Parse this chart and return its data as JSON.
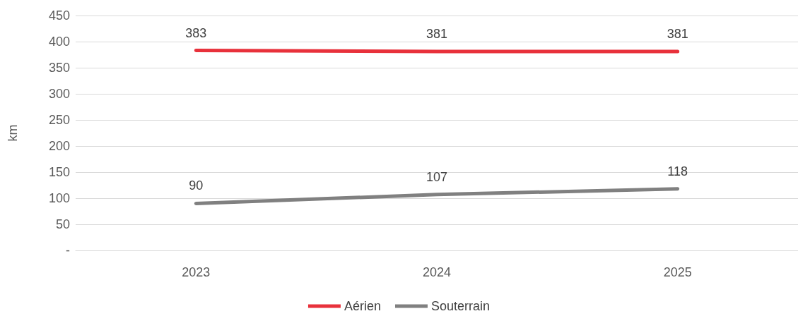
{
  "chart_data": {
    "type": "line",
    "ylabel": "km",
    "categories": [
      "2023",
      "2024",
      "2025"
    ],
    "series": [
      {
        "name": "Aérien",
        "color": "#e8313b",
        "values": [
          383,
          381,
          381
        ]
      },
      {
        "name": "Souterrain",
        "color": "#808080",
        "values": [
          90,
          107,
          118
        ]
      }
    ],
    "ylim": [
      0,
      450
    ],
    "yticks": [
      {
        "value": 0,
        "label": "-"
      },
      50,
      100,
      150,
      200,
      250,
      300,
      350,
      400,
      450
    ],
    "grid": "y",
    "legend": "bottom",
    "data_labels": true,
    "marker": "none",
    "line_style": "solid"
  }
}
